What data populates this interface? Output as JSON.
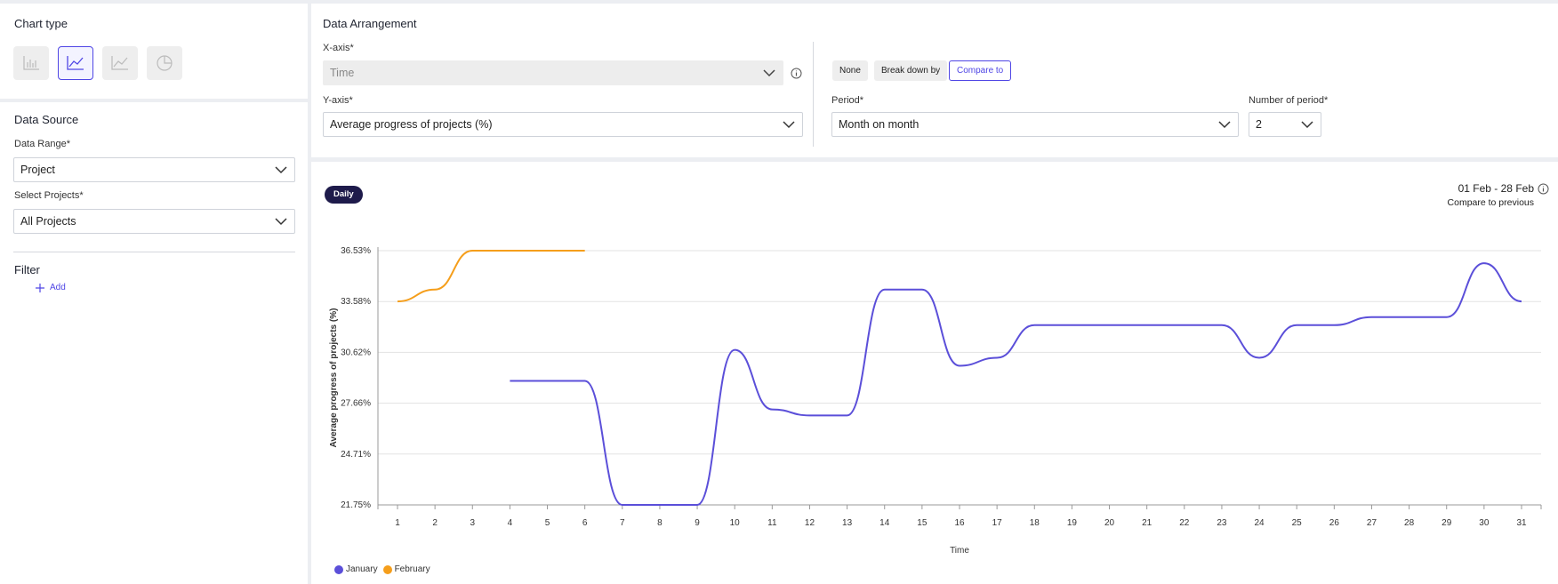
{
  "chart_type_panel": {
    "title": "Chart type",
    "buttons": [
      {
        "icon": "bar-chart-icon",
        "active": false
      },
      {
        "icon": "line-chart-icon",
        "active": true
      },
      {
        "icon": "area-chart-icon",
        "active": false
      },
      {
        "icon": "pie-chart-icon",
        "active": false
      }
    ]
  },
  "data_source": {
    "title": "Data Source",
    "data_range_label": "Data Range*",
    "data_range_value": "Project",
    "select_projects_label": "Select Projects*",
    "select_projects_value": "All Projects"
  },
  "filter": {
    "title": "Filter",
    "add_label": "Add"
  },
  "data_arrangement": {
    "title": "Data Arrangement",
    "x_axis_label": "X-axis*",
    "x_axis_value": "Time",
    "y_axis_label": "Y-axis*",
    "y_axis_value": "Average progress of projects (%)",
    "modes": [
      "None",
      "Break down by",
      "Compare to"
    ],
    "active_mode": "Compare to",
    "period_label": "Period*",
    "period_value": "Month on month",
    "num_period_label": "Number of period*",
    "num_period_value": "2"
  },
  "chart_header": {
    "granularity": "Daily",
    "date_range": "01 Feb - 28 Feb",
    "compare_text": "Compare to previous"
  },
  "colors": {
    "accent": "#4f46e5",
    "january": "#5b4fd9",
    "february": "#f59e1b",
    "daily_badge": "#1e1b4b"
  },
  "chart_data": {
    "type": "line",
    "title": "",
    "xlabel": "Time",
    "ylabel": "Average progress of projects (%)",
    "x": [
      1,
      2,
      3,
      4,
      5,
      6,
      7,
      8,
      9,
      10,
      11,
      12,
      13,
      14,
      15,
      16,
      17,
      18,
      19,
      20,
      21,
      22,
      23,
      24,
      25,
      26,
      27,
      28,
      29,
      30,
      31
    ],
    "y_ticks": [
      "21.75%",
      "24.71%",
      "27.66%",
      "30.62%",
      "33.58%",
      "36.53%"
    ],
    "ylim": [
      21.75,
      36.53
    ],
    "grid": true,
    "legend_position": "bottom-left",
    "series": [
      {
        "name": "January",
        "color": "#5b4fd9",
        "values": [
          null,
          null,
          null,
          28.96,
          28.96,
          28.96,
          21.75,
          21.75,
          21.75,
          30.76,
          27.3,
          26.95,
          26.95,
          34.27,
          34.27,
          29.84,
          30.3,
          32.2,
          32.2,
          32.2,
          32.2,
          32.2,
          32.2,
          30.3,
          32.2,
          32.2,
          32.67,
          32.67,
          32.67,
          35.8,
          33.58
        ]
      },
      {
        "name": "February",
        "color": "#f59e1b",
        "values": [
          33.58,
          34.27,
          36.53,
          36.53,
          36.53,
          36.53,
          null,
          null,
          null,
          null,
          null,
          null,
          null,
          null,
          null,
          null,
          null,
          null,
          null,
          null,
          null,
          null,
          null,
          null,
          null,
          null,
          null,
          null,
          null,
          null,
          null
        ]
      }
    ]
  }
}
